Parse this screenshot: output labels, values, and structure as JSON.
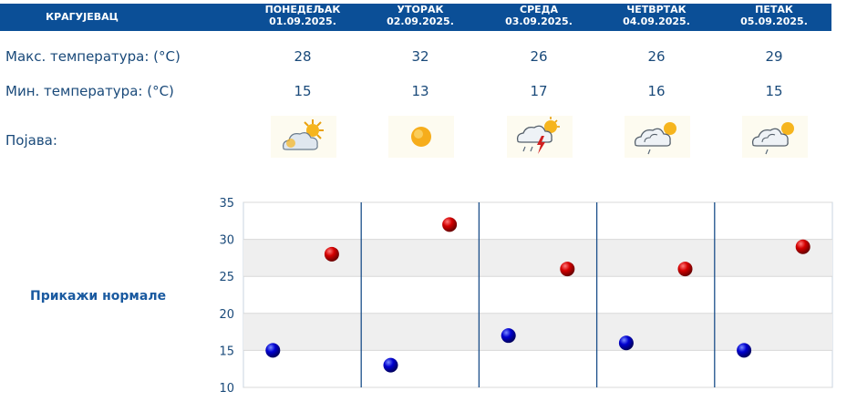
{
  "header": {
    "city": "КРАГУЈЕВАЦ",
    "days": [
      {
        "name": "ПОНЕДЕЉАК",
        "date": "01.09.2025."
      },
      {
        "name": "УТОРАК",
        "date": "02.09.2025."
      },
      {
        "name": "СРЕДА",
        "date": "03.09.2025."
      },
      {
        "name": "ЧЕТВРТАК",
        "date": "04.09.2025."
      },
      {
        "name": "ПЕТАК",
        "date": "05.09.2025."
      }
    ]
  },
  "rows": {
    "max_label": "Макс. температура: (°C)",
    "min_label": "Мин. температура: (°C)",
    "phenomenon_label": "Појава:",
    "max_values": [
      "28",
      "32",
      "26",
      "26",
      "29"
    ],
    "min_values": [
      "15",
      "13",
      "17",
      "16",
      "15"
    ],
    "icons": [
      "partly-sunny-icon",
      "sunny-icon",
      "thunderstorm-rain-icon",
      "cloudy-rain-sun-icon",
      "cloudy-rain-sun-icon"
    ]
  },
  "normals_link": "Прикажи нормале",
  "colors": {
    "header_bg": "#0b4f97",
    "text": "#1a4a7a",
    "max_marker": "#cc0000",
    "min_marker": "#0000cc",
    "separator": "#1b4f8a"
  },
  "chart_data": {
    "type": "scatter",
    "categories": [
      "01.09.2025.",
      "02.09.2025.",
      "03.09.2025.",
      "04.09.2025.",
      "05.09.2025."
    ],
    "series": [
      {
        "values": [
          28,
          32,
          26,
          26,
          29
        ],
        "color": "#cc0000"
      },
      {
        "values": [
          15,
          13,
          17,
          16,
          15
        ],
        "color": "#0000cc"
      }
    ],
    "ylim": [
      10,
      35
    ],
    "yticks": [
      "10",
      "15",
      "20",
      "25",
      "30",
      "35"
    ],
    "grid": true,
    "banded_background": true
  }
}
